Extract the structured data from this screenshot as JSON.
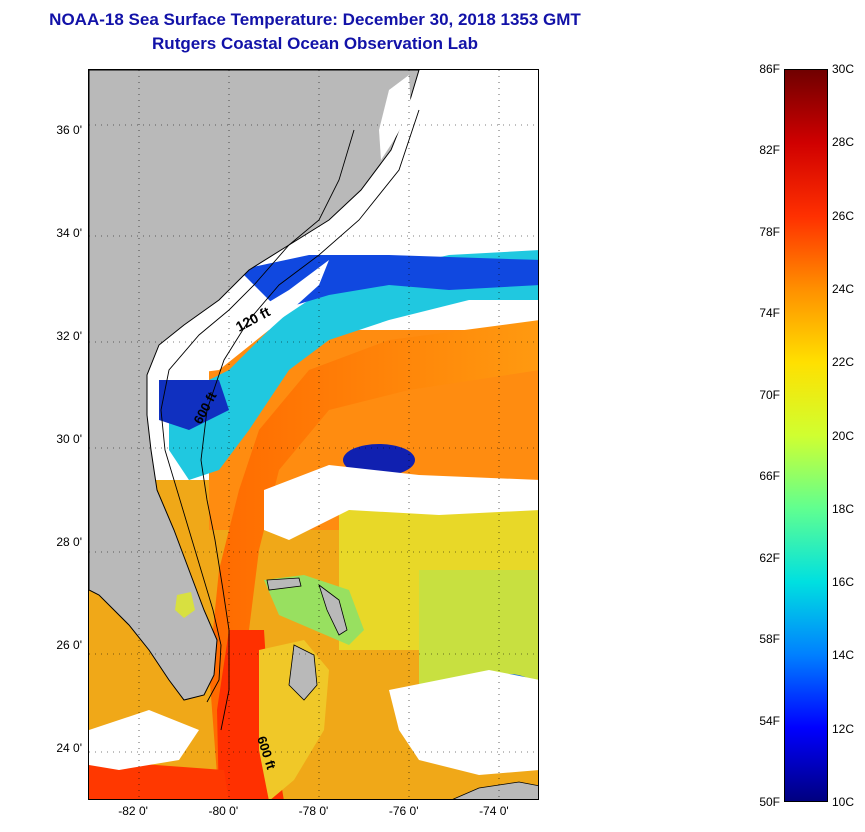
{
  "title": {
    "line1": "NOAA-18 Sea Surface Temperature:  December 30, 2018 1353 GMT",
    "line2": "Rutgers Coastal Ocean Observation Lab"
  },
  "map": {
    "lat_range": [
      23.0,
      37.2
    ],
    "lon_range": [
      -83.0,
      -73.0
    ],
    "lat_labels": [
      {
        "lat": 36,
        "text": "36 0'"
      },
      {
        "lat": 34,
        "text": "34 0'"
      },
      {
        "lat": 32,
        "text": "32 0'"
      },
      {
        "lat": 30,
        "text": "30 0'"
      },
      {
        "lat": 28,
        "text": "28 0'"
      },
      {
        "lat": 26,
        "text": "26 0'"
      },
      {
        "lat": 24,
        "text": "24 0'"
      }
    ],
    "lon_labels": [
      {
        "lon": -82,
        "text": "-82 0'"
      },
      {
        "lon": -80,
        "text": "-80 0'"
      },
      {
        "lon": -78,
        "text": "-78 0'"
      },
      {
        "lon": -76,
        "text": "-76 0'"
      },
      {
        "lon": -74,
        "text": "-74 0'"
      }
    ],
    "grid": "dotted",
    "contour_labels": {
      "c120": "120 ft",
      "c600a": "600 ft",
      "c600b": "600 ft"
    },
    "colors": {
      "land": "#b9b9b9",
      "cloud": "#ffffff",
      "coast": "#000000"
    }
  },
  "colorbar": {
    "range_c": [
      10,
      30
    ],
    "range_f": [
      50,
      86
    ],
    "fahrenheit_labels": [
      "86F",
      "82F",
      "78F",
      "74F",
      "70F",
      "66F",
      "62F",
      "58F",
      "54F",
      "50F"
    ],
    "celsius_labels": [
      "30C",
      "28C",
      "26C",
      "24C",
      "22C",
      "20C",
      "18C",
      "16C",
      "14C",
      "12C",
      "10C"
    ],
    "colors": [
      "#000080",
      "#0000ff",
      "#0080ff",
      "#00e0e0",
      "#60ff90",
      "#d0ff30",
      "#ffe000",
      "#ff9000",
      "#ff3000",
      "#d00000",
      "#700000"
    ]
  }
}
